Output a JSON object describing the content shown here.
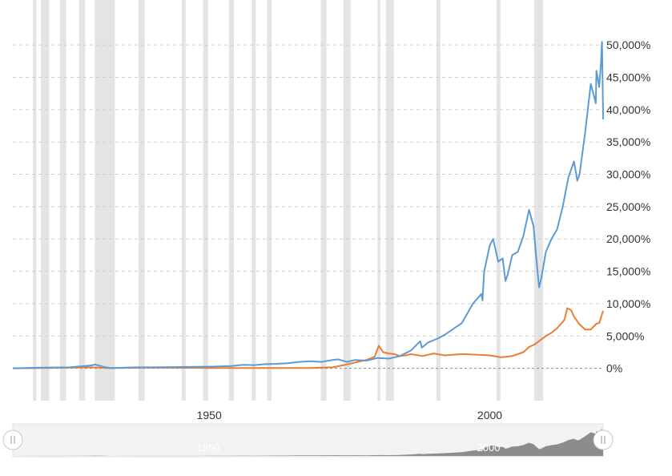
{
  "chart_data": {
    "type": "line",
    "title": "",
    "xlabel": "",
    "ylabel": "",
    "xlim": [
      1915,
      2020.2
    ],
    "ylim": [
      -5000,
      52000
    ],
    "y_ticks": [
      0,
      5000,
      10000,
      15000,
      20000,
      25000,
      30000,
      35000,
      40000,
      45000,
      50000
    ],
    "y_tick_labels": [
      "0%",
      "5,000%",
      "10,000%",
      "15,000%",
      "20,000%",
      "25,000%",
      "30,000%",
      "35,000%",
      "40,000%",
      "45,000%",
      "50,000%"
    ],
    "x_ticks": [
      1950,
      2000
    ],
    "x_tick_labels": [
      "1950",
      "2000"
    ],
    "grid": "horizontal dashed",
    "legend": "none",
    "colors": {
      "series_1": "#5b9bd5",
      "series_2": "#ed7d31",
      "recession_band": "#e4e4e4",
      "grid": "#cfcfcf",
      "zero_line": "#888888",
      "navigator_fill": "#8c8c8c"
    },
    "recessions": [
      [
        1918.6,
        1919.2
      ],
      [
        1920.0,
        1921.5
      ],
      [
        1923.4,
        1924.5
      ],
      [
        1926.8,
        1927.9
      ],
      [
        1929.6,
        1933.2
      ],
      [
        1937.4,
        1938.5
      ],
      [
        1945.1,
        1945.8
      ],
      [
        1948.9,
        1949.8
      ],
      [
        1953.5,
        1954.4
      ],
      [
        1957.6,
        1958.3
      ],
      [
        1960.3,
        1961.1
      ],
      [
        1969.9,
        1970.9
      ],
      [
        1973.9,
        1975.2
      ],
      [
        1980.0,
        1980.5
      ],
      [
        1981.5,
        1982.9
      ],
      [
        1990.5,
        1991.2
      ],
      [
        2001.2,
        2001.9
      ],
      [
        2007.9,
        2009.5
      ]
    ],
    "series": [
      {
        "x": [
          1915,
          1920,
          1925,
          1929,
          1929.7,
          1931,
          1932.5,
          1937,
          1940,
          1945,
          1950,
          1954,
          1956,
          1958,
          1960,
          1962,
          1964,
          1966,
          1968,
          1970,
          1972,
          1973,
          1974.5,
          1976,
          1978,
          1980,
          1982,
          1984,
          1986,
          1987.6,
          1987.9,
          1989,
          1990.7,
          1992,
          1995,
          1997,
          1998.5,
          1998.7,
          1999,
          2000,
          2000.6,
          2001.5,
          2002.3,
          2002.8,
          2003.2,
          2004,
          2005,
          2006,
          2007,
          2007.8,
          2008.3,
          2008.8,
          2009.2,
          2010,
          2011,
          2012,
          2013,
          2014,
          2015,
          2015.6,
          2016,
          2017,
          2018,
          2018.9,
          2019,
          2019.5,
          2019.8,
          2020.0,
          2020.1,
          2020.2
        ],
        "y": [
          0,
          100,
          150,
          450,
          600,
          250,
          30,
          150,
          150,
          200,
          250,
          350,
          550,
          500,
          650,
          700,
          800,
          1000,
          1100,
          1000,
          1300,
          1400,
          1000,
          1300,
          1200,
          1600,
          1500,
          1900,
          2800,
          4200,
          3200,
          4000,
          4600,
          5200,
          7000,
          10000,
          11500,
          10500,
          15000,
          19000,
          20000,
          16500,
          17000,
          13500,
          14500,
          17500,
          18000,
          20500,
          24500,
          22000,
          17000,
          12500,
          14000,
          18000,
          20000,
          21500,
          25000,
          29500,
          32000,
          29000,
          30000,
          36500,
          44000,
          41000,
          46000,
          43500,
          47000,
          50500,
          45000,
          38500
        ]
      },
      {
        "x": [
          1915,
          1920,
          1925,
          1929,
          1932,
          1940,
          1950,
          1960,
          1968,
          1970,
          1972,
          1974,
          1976,
          1978,
          1979.5,
          1980.2,
          1981,
          1982,
          1983,
          1984,
          1985,
          1986,
          1988,
          1990,
          1992,
          1995,
          1998,
          2000,
          2002,
          2004,
          2006,
          2007,
          2008,
          2010,
          2011,
          2012,
          2013.3,
          2013.8,
          2014.5,
          2015,
          2016,
          2017,
          2018,
          2019,
          2019.5,
          2020.2
        ],
        "y": [
          0,
          50,
          100,
          150,
          50,
          100,
          50,
          50,
          60,
          100,
          150,
          500,
          900,
          1300,
          1800,
          3500,
          2500,
          2300,
          2200,
          1900,
          2000,
          2200,
          1900,
          2300,
          2000,
          2200,
          2100,
          2000,
          1700,
          1900,
          2500,
          3300,
          3700,
          5000,
          5500,
          6200,
          7500,
          9300,
          9000,
          8000,
          6800,
          6000,
          6000,
          6900,
          7000,
          8900
        ]
      }
    ]
  },
  "navigator": {
    "labels": [
      "1950",
      "2000"
    ],
    "left_handle_icon": "drag-handle-icon",
    "right_handle_icon": "drag-handle-icon"
  }
}
